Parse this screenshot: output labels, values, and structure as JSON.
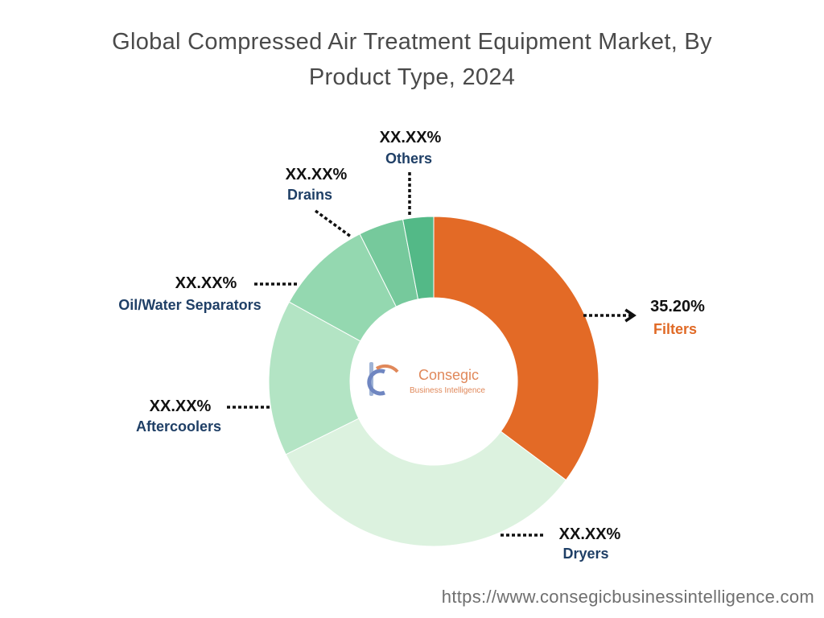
{
  "title_lines": [
    "Global Compressed Air Treatment Equipment Market, By",
    "Product Type, 2024"
  ],
  "source_url": "https://www.consegicbusinessintelligence.com",
  "logo": {
    "name": "Consegic",
    "tagline": "Business Intelligence"
  },
  "colors": {
    "filters": "#e36a26",
    "dryers": "#dcf2df",
    "aftercoolers": "#b3e4c4",
    "oil_water": "#94d8b0",
    "drains": "#76c99c",
    "others": "#53b987",
    "label_text": "#1f3f66"
  },
  "chart_data": {
    "type": "donut",
    "title": "Global Compressed Air Treatment Equipment Market, By Product Type, 2024",
    "start_angle_deg": 0,
    "direction": "clockwise",
    "categories": [
      "Filters",
      "Dryers",
      "Aftercoolers",
      "Oil/Water Separators",
      "Drains",
      "Others"
    ],
    "values": [
      35.2,
      32.5,
      15.3,
      9.6,
      4.4,
      3.0
    ],
    "value_labels": [
      "35.20%",
      "XX.XX%",
      "XX.XX%",
      "XX.XX%",
      "XX.XX%",
      "XX.XX%"
    ],
    "slice_colors": [
      "#e36a26",
      "#dcf2df",
      "#b3e4c4",
      "#94d8b0",
      "#76c99c",
      "#53b987"
    ],
    "legend": "none"
  }
}
